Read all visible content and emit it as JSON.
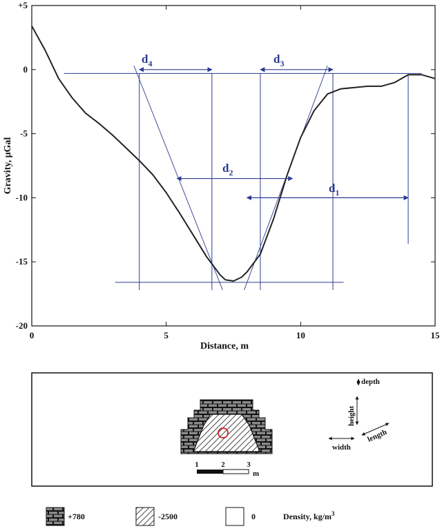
{
  "chart_data": {
    "type": "line",
    "xlabel": "Distance, m",
    "ylabel": "Gravity, μGal",
    "xlim": [
      0,
      15
    ],
    "ylim": [
      -20,
      5
    ],
    "x_ticks": [
      "0",
      "5",
      "10",
      "15"
    ],
    "y_ticks": [
      "+5",
      "0",
      "-5",
      "-10",
      "-15",
      "-20"
    ],
    "series": [
      {
        "x": [
          0,
          0.5,
          1,
          1.5,
          2,
          2.5,
          3,
          3.5,
          4,
          4.5,
          5,
          5.5,
          6,
          6.5,
          7,
          7.2,
          7.5,
          7.8,
          8,
          8.5,
          9,
          9.5,
          10,
          10.5,
          11,
          11.5,
          12,
          12.5,
          13,
          13.5,
          14,
          14.5,
          15
        ],
        "y": [
          3.4,
          1.5,
          -0.7,
          -2.2,
          -3.4,
          -4.2,
          -5.1,
          -6.1,
          -7.1,
          -8.2,
          -9.6,
          -11.2,
          -12.9,
          -14.6,
          -16.0,
          -16.4,
          -16.5,
          -16.2,
          -15.8,
          -14.4,
          -11.6,
          -8.2,
          -5.3,
          -3.2,
          -1.9,
          -1.5,
          -1.4,
          -1.3,
          -1.3,
          -1.0,
          -0.4,
          -0.4,
          -0.7
        ]
      }
    ],
    "reference_lines": {
      "zero_line": {
        "y": -0.3,
        "x_range": [
          1.2,
          14.5
        ]
      },
      "base_line": {
        "y": -16.6,
        "x_range": [
          3.1,
          11.6
        ]
      },
      "verticals": [
        {
          "x": 4.0,
          "y_range": [
            -17.2,
            -0.3
          ]
        },
        {
          "x": 6.7,
          "y_range": [
            -17.2,
            -0.3
          ]
        },
        {
          "x": 8.5,
          "y_range": [
            -17.2,
            -0.3
          ]
        },
        {
          "x": 11.2,
          "y_range": [
            -17.2,
            -0.3
          ]
        },
        {
          "x": 14.0,
          "y_range": [
            -13.6,
            -0.4
          ]
        }
      ],
      "tangents": [
        {
          "from": [
            3.8,
            0.3
          ],
          "to": [
            7.1,
            -17.2
          ]
        },
        {
          "from": [
            7.9,
            -17.2
          ],
          "to": [
            11.0,
            0.3
          ]
        }
      ]
    },
    "annotations": [
      {
        "text": "d4",
        "x": [
          4.0,
          6.7
        ],
        "y": 0
      },
      {
        "text": "d3",
        "x": [
          8.5,
          11.2
        ],
        "y": 0
      },
      {
        "text": "d2",
        "x": [
          5.4,
          9.7
        ],
        "y": -8.5
      },
      {
        "text": "d1",
        "x": [
          8.0,
          14.0
        ],
        "y": -10.0
      }
    ]
  },
  "labels": {
    "x_axis": "Distance, m",
    "y_axis": "Gravity, μGal",
    "d4_main": "d",
    "d4_sub": "4",
    "d3_main": "d",
    "d3_sub": "3",
    "d2_main": "d",
    "d2_sub": "2",
    "d1_main": "d",
    "d1_sub": "1"
  },
  "model": {
    "scale_ticks": [
      "1",
      "2",
      "3"
    ],
    "scale_unit": "m",
    "depth": "depth",
    "height": "height",
    "width": "width",
    "length": "length"
  },
  "legend": {
    "items": [
      {
        "label": "+780",
        "pattern": "brick"
      },
      {
        "label": "-2500",
        "pattern": "hatch"
      },
      {
        "label": "0",
        "pattern": "empty"
      }
    ],
    "title_main": "Density, kg/m",
    "title_sup": "3"
  },
  "colors": {
    "curve": "#222222",
    "annotation": "#2b3a8f",
    "marker": "#d02020"
  }
}
